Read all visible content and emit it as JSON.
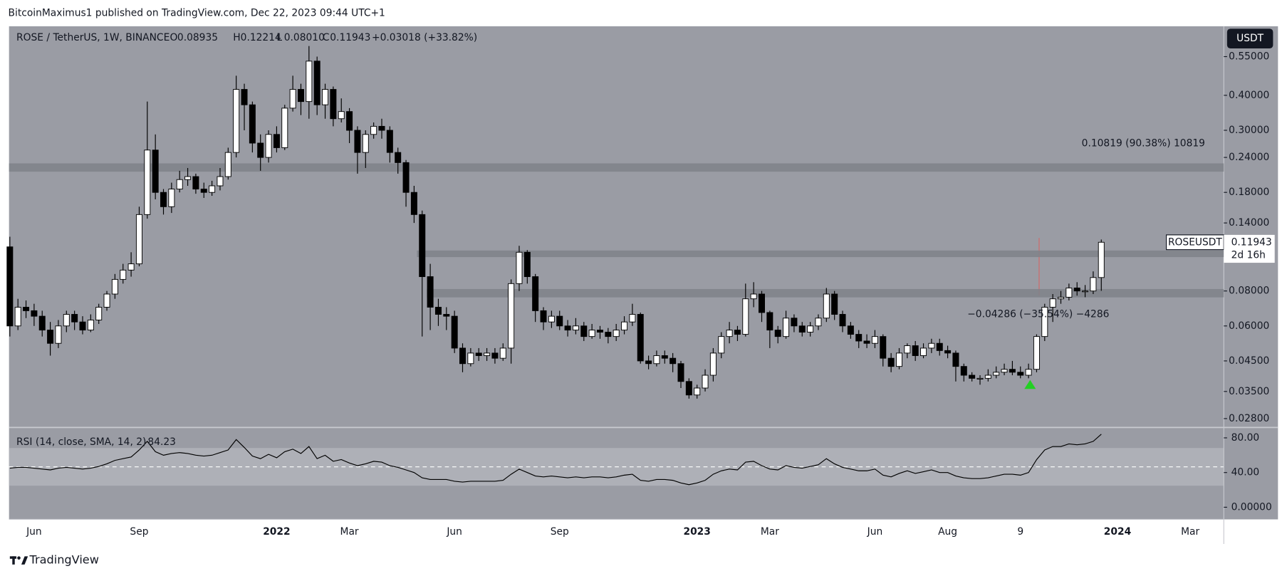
{
  "header": "BitcoinMaximus1 published on TradingView.com, Dec 22, 2023 09:44 UTC+1",
  "footer": "TradingView",
  "chart_data": {
    "type": "candlestick",
    "title": "ROSE / TetherUS, 1W, BINANCE",
    "legend": [
      {
        "key": "O",
        "text": "0.08935"
      },
      {
        "key": "H",
        "text": "0.12214"
      },
      {
        "key": "L",
        "text": "0.08010"
      },
      {
        "key": "C",
        "text": "0.11943"
      }
    ],
    "change": "+0.03018 (+33.82%)",
    "currency": "USDT",
    "symbol": "ROSEUSDT",
    "countdown": "2d 16h",
    "annotations": [
      "0.10819 (90.38%) 10819",
      "−0.04286 (−35.54%) −4286"
    ],
    "log_scale": true,
    "up_color": "#ffffff",
    "down_color": "#000000",
    "zones": [
      {
        "low": 0.2135,
        "high": 0.2285
      },
      {
        "low": 0.1057,
        "high": 0.1116
      },
      {
        "low": 0.0759,
        "high": 0.0813
      }
    ],
    "categories": [
      null,
      null,
      null,
      "Jun",
      null,
      null,
      null,
      null,
      null,
      null,
      null,
      null,
      null,
      null,
      null,
      null,
      "Sep",
      null,
      null,
      null,
      null,
      null,
      null,
      null,
      null,
      null,
      null,
      null,
      null,
      null,
      null,
      null,
      null,
      "2022",
      null,
      null,
      null,
      null,
      null,
      null,
      null,
      null,
      "Mar",
      null,
      null,
      null,
      null,
      null,
      null,
      null,
      null,
      null,
      null,
      null,
      null,
      "Jun",
      null,
      null,
      null,
      null,
      null,
      null,
      null,
      null,
      null,
      null,
      null,
      null,
      "Sep",
      null,
      null,
      null,
      null,
      null,
      null,
      null,
      null,
      null,
      null,
      null,
      null,
      null,
      null,
      null,
      null,
      "2023",
      null,
      null,
      null,
      null,
      null,
      null,
      null,
      null,
      "Mar",
      null,
      null,
      null,
      null,
      null,
      null,
      null,
      null,
      null,
      null,
      null,
      null,
      "Jun",
      null,
      null,
      null,
      null,
      null,
      null,
      null,
      null,
      "Aug",
      null,
      null,
      null,
      null,
      null,
      null,
      null,
      null,
      "9",
      null,
      null,
      null,
      null,
      null,
      null,
      null,
      null,
      null,
      null,
      null,
      "2024",
      null,
      null,
      null,
      null,
      null,
      null,
      null,
      null,
      "Mar",
      null,
      null,
      null,
      null
    ],
    "open": [
      0.115,
      0.06,
      0.07,
      0.068,
      0.065,
      0.058,
      0.052,
      0.06,
      0.066,
      0.062,
      0.058,
      0.063,
      0.07,
      0.078,
      0.088,
      0.095,
      0.1,
      0.15,
      0.255,
      0.18,
      0.16,
      0.185,
      0.2,
      0.205,
      0.185,
      0.18,
      0.19,
      0.205,
      0.25,
      0.42,
      0.37,
      0.27,
      0.24,
      0.29,
      0.26,
      0.36,
      0.42,
      0.38,
      0.53,
      0.37,
      0.42,
      0.33,
      0.35,
      0.3,
      0.25,
      0.29,
      0.31,
      0.3,
      0.25,
      0.23,
      0.18,
      0.15,
      0.09,
      0.07,
      0.066,
      0.065,
      0.05,
      0.044,
      0.048,
      0.047,
      0.048,
      0.046,
      0.05,
      0.085,
      0.11,
      0.09,
      0.068,
      0.062,
      0.065,
      0.06,
      0.058,
      0.06,
      0.055,
      0.058,
      0.057,
      0.055,
      0.058,
      0.062,
      0.066,
      0.045,
      0.044,
      0.047,
      0.046,
      0.044,
      0.038,
      0.034,
      0.036,
      0.04,
      0.048,
      0.055,
      0.058,
      0.056,
      0.075,
      0.078,
      0.067,
      0.058,
      0.055,
      0.064,
      0.06,
      0.057,
      0.06,
      0.064,
      0.078,
      0.066,
      0.06,
      0.056,
      0.053,
      0.052,
      0.055,
      0.046,
      0.043,
      0.048,
      0.051,
      0.047,
      0.05,
      0.052,
      0.049,
      0.048,
      0.043,
      0.04,
      0.039,
      0.039,
      0.04,
      0.041,
      0.042,
      0.041,
      0.04,
      0.042,
      0.055,
      0.07,
      0.075,
      0.076,
      0.082,
      0.08,
      0.08,
      0.08935,
      null,
      null,
      null,
      null,
      null,
      null,
      null,
      null,
      null,
      null,
      null,
      null,
      null,
      null,
      null
    ],
    "high": [
      0.125,
      0.075,
      0.074,
      0.072,
      0.068,
      0.062,
      0.063,
      0.068,
      0.068,
      0.065,
      0.066,
      0.072,
      0.08,
      0.092,
      0.1,
      0.11,
      0.16,
      0.38,
      0.29,
      0.185,
      0.195,
      0.215,
      0.22,
      0.21,
      0.195,
      0.198,
      0.22,
      0.26,
      0.47,
      0.44,
      0.38,
      0.29,
      0.3,
      0.31,
      0.37,
      0.47,
      0.44,
      0.6,
      0.55,
      0.44,
      0.43,
      0.39,
      0.36,
      0.31,
      0.3,
      0.32,
      0.33,
      0.31,
      0.26,
      0.235,
      0.19,
      0.155,
      0.1,
      0.075,
      0.07,
      0.068,
      0.052,
      0.05,
      0.05,
      0.05,
      0.05,
      0.052,
      0.088,
      0.116,
      0.112,
      0.092,
      0.07,
      0.068,
      0.068,
      0.063,
      0.064,
      0.062,
      0.061,
      0.06,
      0.059,
      0.061,
      0.065,
      0.072,
      0.067,
      0.047,
      0.049,
      0.049,
      0.048,
      0.045,
      0.039,
      0.037,
      0.042,
      0.05,
      0.057,
      0.062,
      0.06,
      0.085,
      0.086,
      0.08,
      0.068,
      0.06,
      0.068,
      0.066,
      0.062,
      0.062,
      0.066,
      0.082,
      0.08,
      0.068,
      0.062,
      0.058,
      0.056,
      0.058,
      0.056,
      0.048,
      0.05,
      0.052,
      0.053,
      0.052,
      0.054,
      0.054,
      0.051,
      0.049,
      0.044,
      0.041,
      0.04,
      0.042,
      0.043,
      0.044,
      0.045,
      0.043,
      0.044,
      0.056,
      0.072,
      0.078,
      0.08,
      0.085,
      0.086,
      0.084,
      0.094,
      0.12214,
      null,
      null,
      null,
      null,
      null,
      null,
      null,
      null,
      null,
      null,
      null,
      null,
      null,
      null,
      null
    ],
    "low": [
      0.055,
      0.058,
      0.064,
      0.06,
      0.055,
      0.047,
      0.05,
      0.057,
      0.058,
      0.056,
      0.057,
      0.061,
      0.068,
      0.075,
      0.085,
      0.09,
      0.098,
      0.145,
      0.17,
      0.15,
      0.152,
      0.18,
      0.19,
      0.178,
      0.172,
      0.175,
      0.183,
      0.2,
      0.24,
      0.3,
      0.25,
      0.215,
      0.23,
      0.25,
      0.255,
      0.35,
      0.34,
      0.33,
      0.34,
      0.33,
      0.31,
      0.32,
      0.27,
      0.21,
      0.22,
      0.28,
      0.28,
      0.23,
      0.21,
      0.16,
      0.14,
      0.055,
      0.058,
      0.06,
      0.058,
      0.048,
      0.041,
      0.043,
      0.045,
      0.045,
      0.044,
      0.045,
      0.044,
      0.08,
      0.085,
      0.062,
      0.058,
      0.059,
      0.058,
      0.055,
      0.056,
      0.053,
      0.054,
      0.054,
      0.052,
      0.053,
      0.056,
      0.06,
      0.044,
      0.042,
      0.043,
      0.044,
      0.041,
      0.036,
      0.033,
      0.033,
      0.035,
      0.038,
      0.046,
      0.052,
      0.053,
      0.055,
      0.07,
      0.062,
      0.05,
      0.052,
      0.054,
      0.057,
      0.055,
      0.055,
      0.058,
      0.062,
      0.063,
      0.057,
      0.054,
      0.05,
      0.05,
      0.05,
      0.043,
      0.041,
      0.042,
      0.046,
      0.045,
      0.046,
      0.048,
      0.047,
      0.046,
      0.038,
      0.038,
      0.038,
      0.037,
      0.038,
      0.039,
      0.04,
      0.04,
      0.039,
      0.039,
      0.041,
      0.053,
      0.062,
      0.072,
      0.074,
      0.077,
      0.076,
      0.078,
      0.0801,
      null,
      null,
      null,
      null,
      null,
      null,
      null,
      null,
      null,
      null,
      null,
      null,
      null,
      null,
      null
    ],
    "close": [
      0.06,
      0.07,
      0.068,
      0.065,
      0.058,
      0.052,
      0.06,
      0.066,
      0.062,
      0.058,
      0.063,
      0.07,
      0.078,
      0.088,
      0.095,
      0.1,
      0.15,
      0.255,
      0.18,
      0.16,
      0.185,
      0.2,
      0.205,
      0.185,
      0.18,
      0.19,
      0.205,
      0.25,
      0.42,
      0.37,
      0.27,
      0.24,
      0.29,
      0.26,
      0.36,
      0.42,
      0.38,
      0.53,
      0.37,
      0.42,
      0.33,
      0.35,
      0.3,
      0.25,
      0.29,
      0.31,
      0.3,
      0.25,
      0.23,
      0.18,
      0.15,
      0.09,
      0.07,
      0.066,
      0.065,
      0.05,
      0.044,
      0.048,
      0.047,
      0.048,
      0.046,
      0.05,
      0.085,
      0.11,
      0.09,
      0.068,
      0.062,
      0.065,
      0.06,
      0.058,
      0.06,
      0.055,
      0.058,
      0.057,
      0.055,
      0.058,
      0.062,
      0.066,
      0.045,
      0.044,
      0.047,
      0.046,
      0.044,
      0.038,
      0.034,
      0.036,
      0.04,
      0.048,
      0.055,
      0.058,
      0.056,
      0.075,
      0.078,
      0.067,
      0.058,
      0.055,
      0.064,
      0.06,
      0.057,
      0.06,
      0.064,
      0.078,
      0.066,
      0.06,
      0.056,
      0.053,
      0.052,
      0.055,
      0.046,
      0.043,
      0.048,
      0.051,
      0.047,
      0.05,
      0.052,
      0.049,
      0.048,
      0.043,
      0.04,
      0.039,
      0.039,
      0.04,
      0.041,
      0.042,
      0.041,
      0.04,
      0.042,
      0.055,
      0.07,
      0.075,
      0.076,
      0.082,
      0.08,
      0.08,
      0.08935,
      0.11943,
      null,
      null,
      null,
      null,
      null,
      null,
      null,
      null,
      null,
      null,
      null,
      null,
      null,
      null,
      null
    ],
    "ylim": [
      0.0262,
      0.706
    ],
    "yticks": [
      {
        "value": 0.55,
        "label": "0.55000"
      },
      {
        "value": 0.4,
        "label": "0.40000"
      },
      {
        "value": 0.3,
        "label": "0.30000"
      },
      {
        "value": 0.24,
        "label": "0.24000"
      },
      {
        "value": 0.18,
        "label": "0.18000"
      },
      {
        "value": 0.14,
        "label": "0.14000"
      },
      {
        "value": 0.08,
        "label": "0.08000"
      },
      {
        "value": 0.06,
        "label": "0.06000"
      },
      {
        "value": 0.045,
        "label": "0.04500"
      },
      {
        "value": 0.035,
        "label": "0.03500"
      },
      {
        "value": 0.028,
        "label": "0.02800"
      }
    ],
    "rsi": {
      "label": "RSI (14, close, SMA, 14, 2)",
      "value_label": "84.23",
      "color": "#000000",
      "values": [
        45,
        46,
        46,
        45,
        44,
        43,
        45,
        46,
        45,
        44,
        45,
        47,
        50,
        54,
        56,
        58,
        66,
        76,
        64,
        60,
        62,
        63,
        62,
        60,
        59,
        60,
        63,
        66,
        78,
        69,
        59,
        56,
        61,
        57,
        64,
        67,
        62,
        70,
        56,
        60,
        53,
        55,
        51,
        48,
        50,
        53,
        52,
        48,
        46,
        43,
        40,
        34,
        32,
        32,
        32,
        30,
        29,
        30,
        30,
        30,
        30,
        31,
        38,
        44,
        40,
        36,
        35,
        36,
        35,
        34,
        35,
        34,
        35,
        35,
        34,
        35,
        37,
        38,
        31,
        30,
        32,
        32,
        31,
        28,
        26,
        28,
        31,
        38,
        42,
        44,
        43,
        52,
        53,
        48,
        44,
        43,
        48,
        46,
        45,
        47,
        49,
        56,
        50,
        46,
        44,
        42,
        42,
        44,
        37,
        35,
        39,
        42,
        39,
        41,
        43,
        40,
        40,
        36,
        34,
        33,
        33,
        34,
        36,
        38,
        38,
        37,
        40,
        55,
        66,
        70,
        70,
        73,
        72,
        73,
        76,
        84.23,
        null,
        null,
        null,
        null,
        null,
        null,
        null,
        null,
        null,
        null,
        null,
        null,
        null,
        null,
        null
      ],
      "ylim": [
        -14,
        91
      ],
      "yticks": [
        {
          "value": 80,
          "label": "80.00"
        },
        {
          "value": 40,
          "label": "40.00"
        },
        {
          "value": 0,
          "label": "0.00000"
        }
      ]
    }
  }
}
